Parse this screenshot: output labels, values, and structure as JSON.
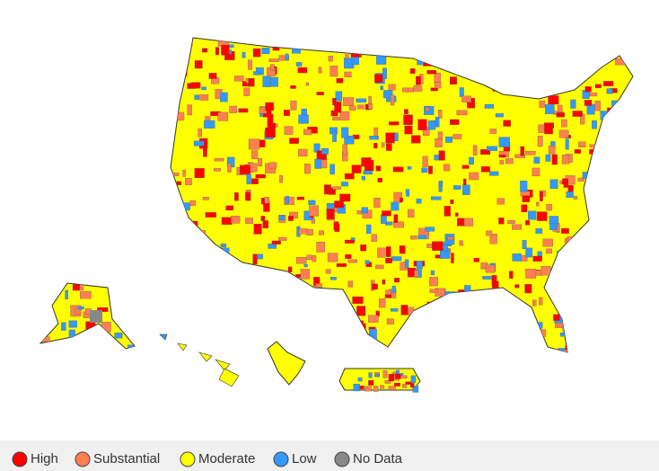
{
  "legend": {
    "items": [
      {
        "label": "High",
        "color": "#ff0000"
      },
      {
        "label": "Substantial",
        "color": "#ff7f50"
      },
      {
        "label": "Moderate",
        "color": "#ffff00"
      },
      {
        "label": "Low",
        "color": "#3399ff"
      },
      {
        "label": "No Data",
        "color": "#888888"
      }
    ]
  }
}
